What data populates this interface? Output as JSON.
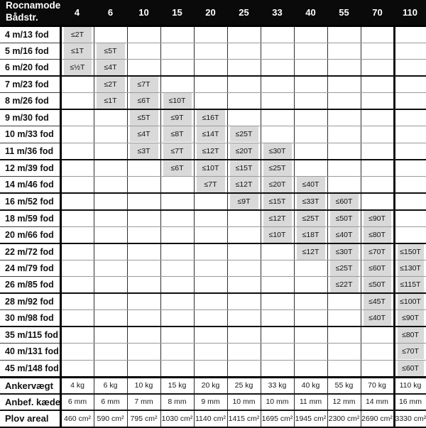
{
  "chart_data": {
    "type": "table",
    "corner": {
      "line1": "Rocnamodel",
      "line2": "Bådstr."
    },
    "columns": [
      "4",
      "6",
      "10",
      "15",
      "20",
      "25",
      "33",
      "40",
      "55",
      "70",
      "110"
    ],
    "rows": [
      {
        "label": "4 m/13 fod",
        "cells": [
          "≤2T",
          null,
          null,
          null,
          null,
          null,
          null,
          null,
          null,
          null,
          null
        ]
      },
      {
        "label": "5 m/16 fod",
        "cells": [
          "≤1T",
          "≤5T",
          null,
          null,
          null,
          null,
          null,
          null,
          null,
          null,
          null
        ]
      },
      {
        "label": "6 m/20 fod",
        "cells": [
          "≤½T",
          "≤4T",
          null,
          null,
          null,
          null,
          null,
          null,
          null,
          null,
          null
        ]
      },
      {
        "label": "7 m/23 fod",
        "cells": [
          null,
          "≤2T",
          "≤7T",
          null,
          null,
          null,
          null,
          null,
          null,
          null,
          null
        ]
      },
      {
        "label": "8 m/26 fod",
        "cells": [
          null,
          "≤1T",
          "≤6T",
          "≤10T",
          null,
          null,
          null,
          null,
          null,
          null,
          null
        ]
      },
      {
        "label": "9 m/30 fod",
        "cells": [
          null,
          null,
          "≤5T",
          "≤9T",
          "≤16T",
          null,
          null,
          null,
          null,
          null,
          null
        ]
      },
      {
        "label": "10 m/33 fod",
        "cells": [
          null,
          null,
          "≤4T",
          "≤8T",
          "≤14T",
          "≤25T",
          null,
          null,
          null,
          null,
          null
        ]
      },
      {
        "label": "11 m/36 fod",
        "cells": [
          null,
          null,
          "≤3T",
          "≤7T",
          "≤12T",
          "≤20T",
          "≤30T",
          null,
          null,
          null,
          null
        ]
      },
      {
        "label": "12 m/39 fod",
        "cells": [
          null,
          null,
          null,
          "≤6T",
          "≤10T",
          "≤15T",
          "≤25T",
          null,
          null,
          null,
          null
        ]
      },
      {
        "label": "14 m/46 fod",
        "cells": [
          null,
          null,
          null,
          null,
          "≤7T",
          "≤12T",
          "≤20T",
          "≤40T",
          null,
          null,
          null
        ]
      },
      {
        "label": "16 m/52 fod",
        "cells": [
          null,
          null,
          null,
          null,
          null,
          "≤9T",
          "≤15T",
          "≤33T",
          "≤60T",
          null,
          null
        ]
      },
      {
        "label": "18 m/59 fod",
        "cells": [
          null,
          null,
          null,
          null,
          null,
          null,
          "≤12T",
          "≤25T",
          "≤50T",
          "≤90T",
          null
        ]
      },
      {
        "label": "20 m/66 fod",
        "cells": [
          null,
          null,
          null,
          null,
          null,
          null,
          "≤10T",
          "≤18T",
          "≤40T",
          "≤80T",
          null
        ]
      },
      {
        "label": "22 m/72 fod",
        "cells": [
          null,
          null,
          null,
          null,
          null,
          null,
          null,
          "≤12T",
          "≤30T",
          "≤70T",
          "≤150T"
        ]
      },
      {
        "label": "24 m/79 fod",
        "cells": [
          null,
          null,
          null,
          null,
          null,
          null,
          null,
          null,
          "≤25T",
          "≤60T",
          "≤130T"
        ]
      },
      {
        "label": "26 m/85 fod",
        "cells": [
          null,
          null,
          null,
          null,
          null,
          null,
          null,
          null,
          "≤22T",
          "≤50T",
          "≤115T"
        ]
      },
      {
        "label": "28 m/92 fod",
        "cells": [
          null,
          null,
          null,
          null,
          null,
          null,
          null,
          null,
          null,
          "≤45T",
          "≤100T"
        ]
      },
      {
        "label": "30 m/98 fod",
        "cells": [
          null,
          null,
          null,
          null,
          null,
          null,
          null,
          null,
          null,
          "≤40T",
          "≤90T"
        ]
      },
      {
        "label": "35 m/115 fod",
        "cells": [
          null,
          null,
          null,
          null,
          null,
          null,
          null,
          null,
          null,
          null,
          "≤80T"
        ]
      },
      {
        "label": "40 m/131 fod",
        "cells": [
          null,
          null,
          null,
          null,
          null,
          null,
          null,
          null,
          null,
          null,
          "≤70T"
        ]
      },
      {
        "label": "45 m/148 fod",
        "cells": [
          null,
          null,
          null,
          null,
          null,
          null,
          null,
          null,
          null,
          null,
          "≤60T"
        ]
      }
    ],
    "spec_rows": [
      {
        "label": "Ankervægt",
        "values": [
          "4 kg",
          "6 kg",
          "10 kg",
          "15 kg",
          "20 kg",
          "25 kg",
          "33 kg",
          "40 kg",
          "55 kg",
          "70 kg",
          "110 kg"
        ]
      },
      {
        "label": "Anbef. kæde",
        "values": [
          "6 mm",
          "6 mm",
          "7 mm",
          "8 mm",
          "9 mm",
          "10 mm",
          "10 mm",
          "11 mm",
          "12 mm",
          "14 mm",
          "16 mm"
        ]
      },
      {
        "label": "Plov areal",
        "values": [
          "460 cm²",
          "590 cm²",
          "795 cm²",
          "1030 cm²",
          "1140 cm²",
          "1415 cm²",
          "1695 cm²",
          "1945 cm²",
          "2300 cm²",
          "2690 cm²",
          "3330 cm²"
        ]
      }
    ],
    "colors": {
      "header_bg": "#0a0a0a",
      "header_text": "#ffffff",
      "shaded_cell": "#d9d9d9"
    }
  }
}
